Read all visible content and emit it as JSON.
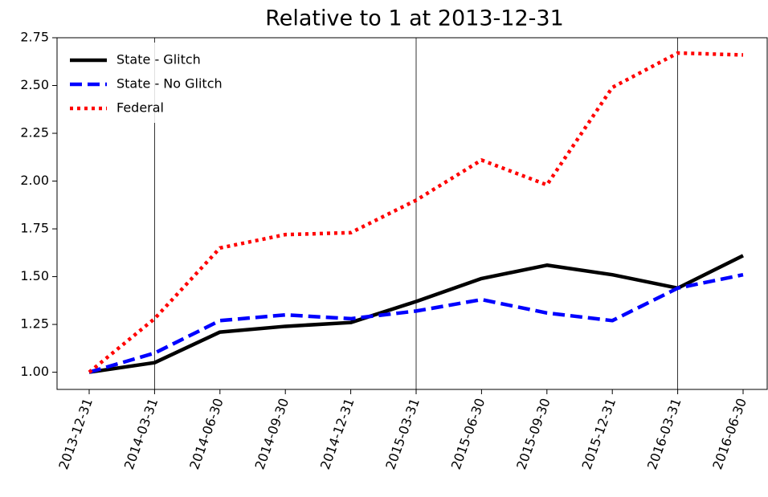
{
  "chart_data": {
    "type": "line",
    "title": "Relative to 1 at 2013-12-31",
    "categories": [
      "2013-12-31",
      "2014-03-31",
      "2014-06-30",
      "2014-09-30",
      "2014-12-31",
      "2015-03-31",
      "2015-06-30",
      "2015-09-30",
      "2015-12-31",
      "2016-03-31",
      "2016-06-30"
    ],
    "series": [
      {
        "name": "State - Glitch",
        "color": "#000000",
        "style": "solid",
        "values": [
          1.0,
          1.05,
          1.21,
          1.24,
          1.26,
          1.37,
          1.49,
          1.56,
          1.51,
          1.44,
          1.61
        ]
      },
      {
        "name": "State - No Glitch",
        "color": "#0000ff",
        "style": "dashed",
        "values": [
          1.0,
          1.1,
          1.27,
          1.3,
          1.28,
          1.32,
          1.38,
          1.31,
          1.27,
          1.44,
          1.51
        ]
      },
      {
        "name": "Federal",
        "color": "#ff0000",
        "style": "dotted",
        "values": [
          1.0,
          1.28,
          1.65,
          1.72,
          1.73,
          1.9,
          2.11,
          1.98,
          2.49,
          2.67,
          2.66
        ]
      }
    ],
    "vlines": [
      "2014-03-31",
      "2015-03-31",
      "2016-03-31"
    ],
    "ylim": [
      0.91,
      2.75
    ],
    "yticks": [
      {
        "value": 1,
        "label": "1.00"
      },
      1.25,
      {
        "value": 1.5,
        "label": "1.50"
      },
      1.75,
      {
        "value": 2,
        "label": "2.00"
      },
      2.25,
      {
        "value": 2.5,
        "label": "2.50"
      },
      2.75
    ],
    "legend": "upper left"
  }
}
